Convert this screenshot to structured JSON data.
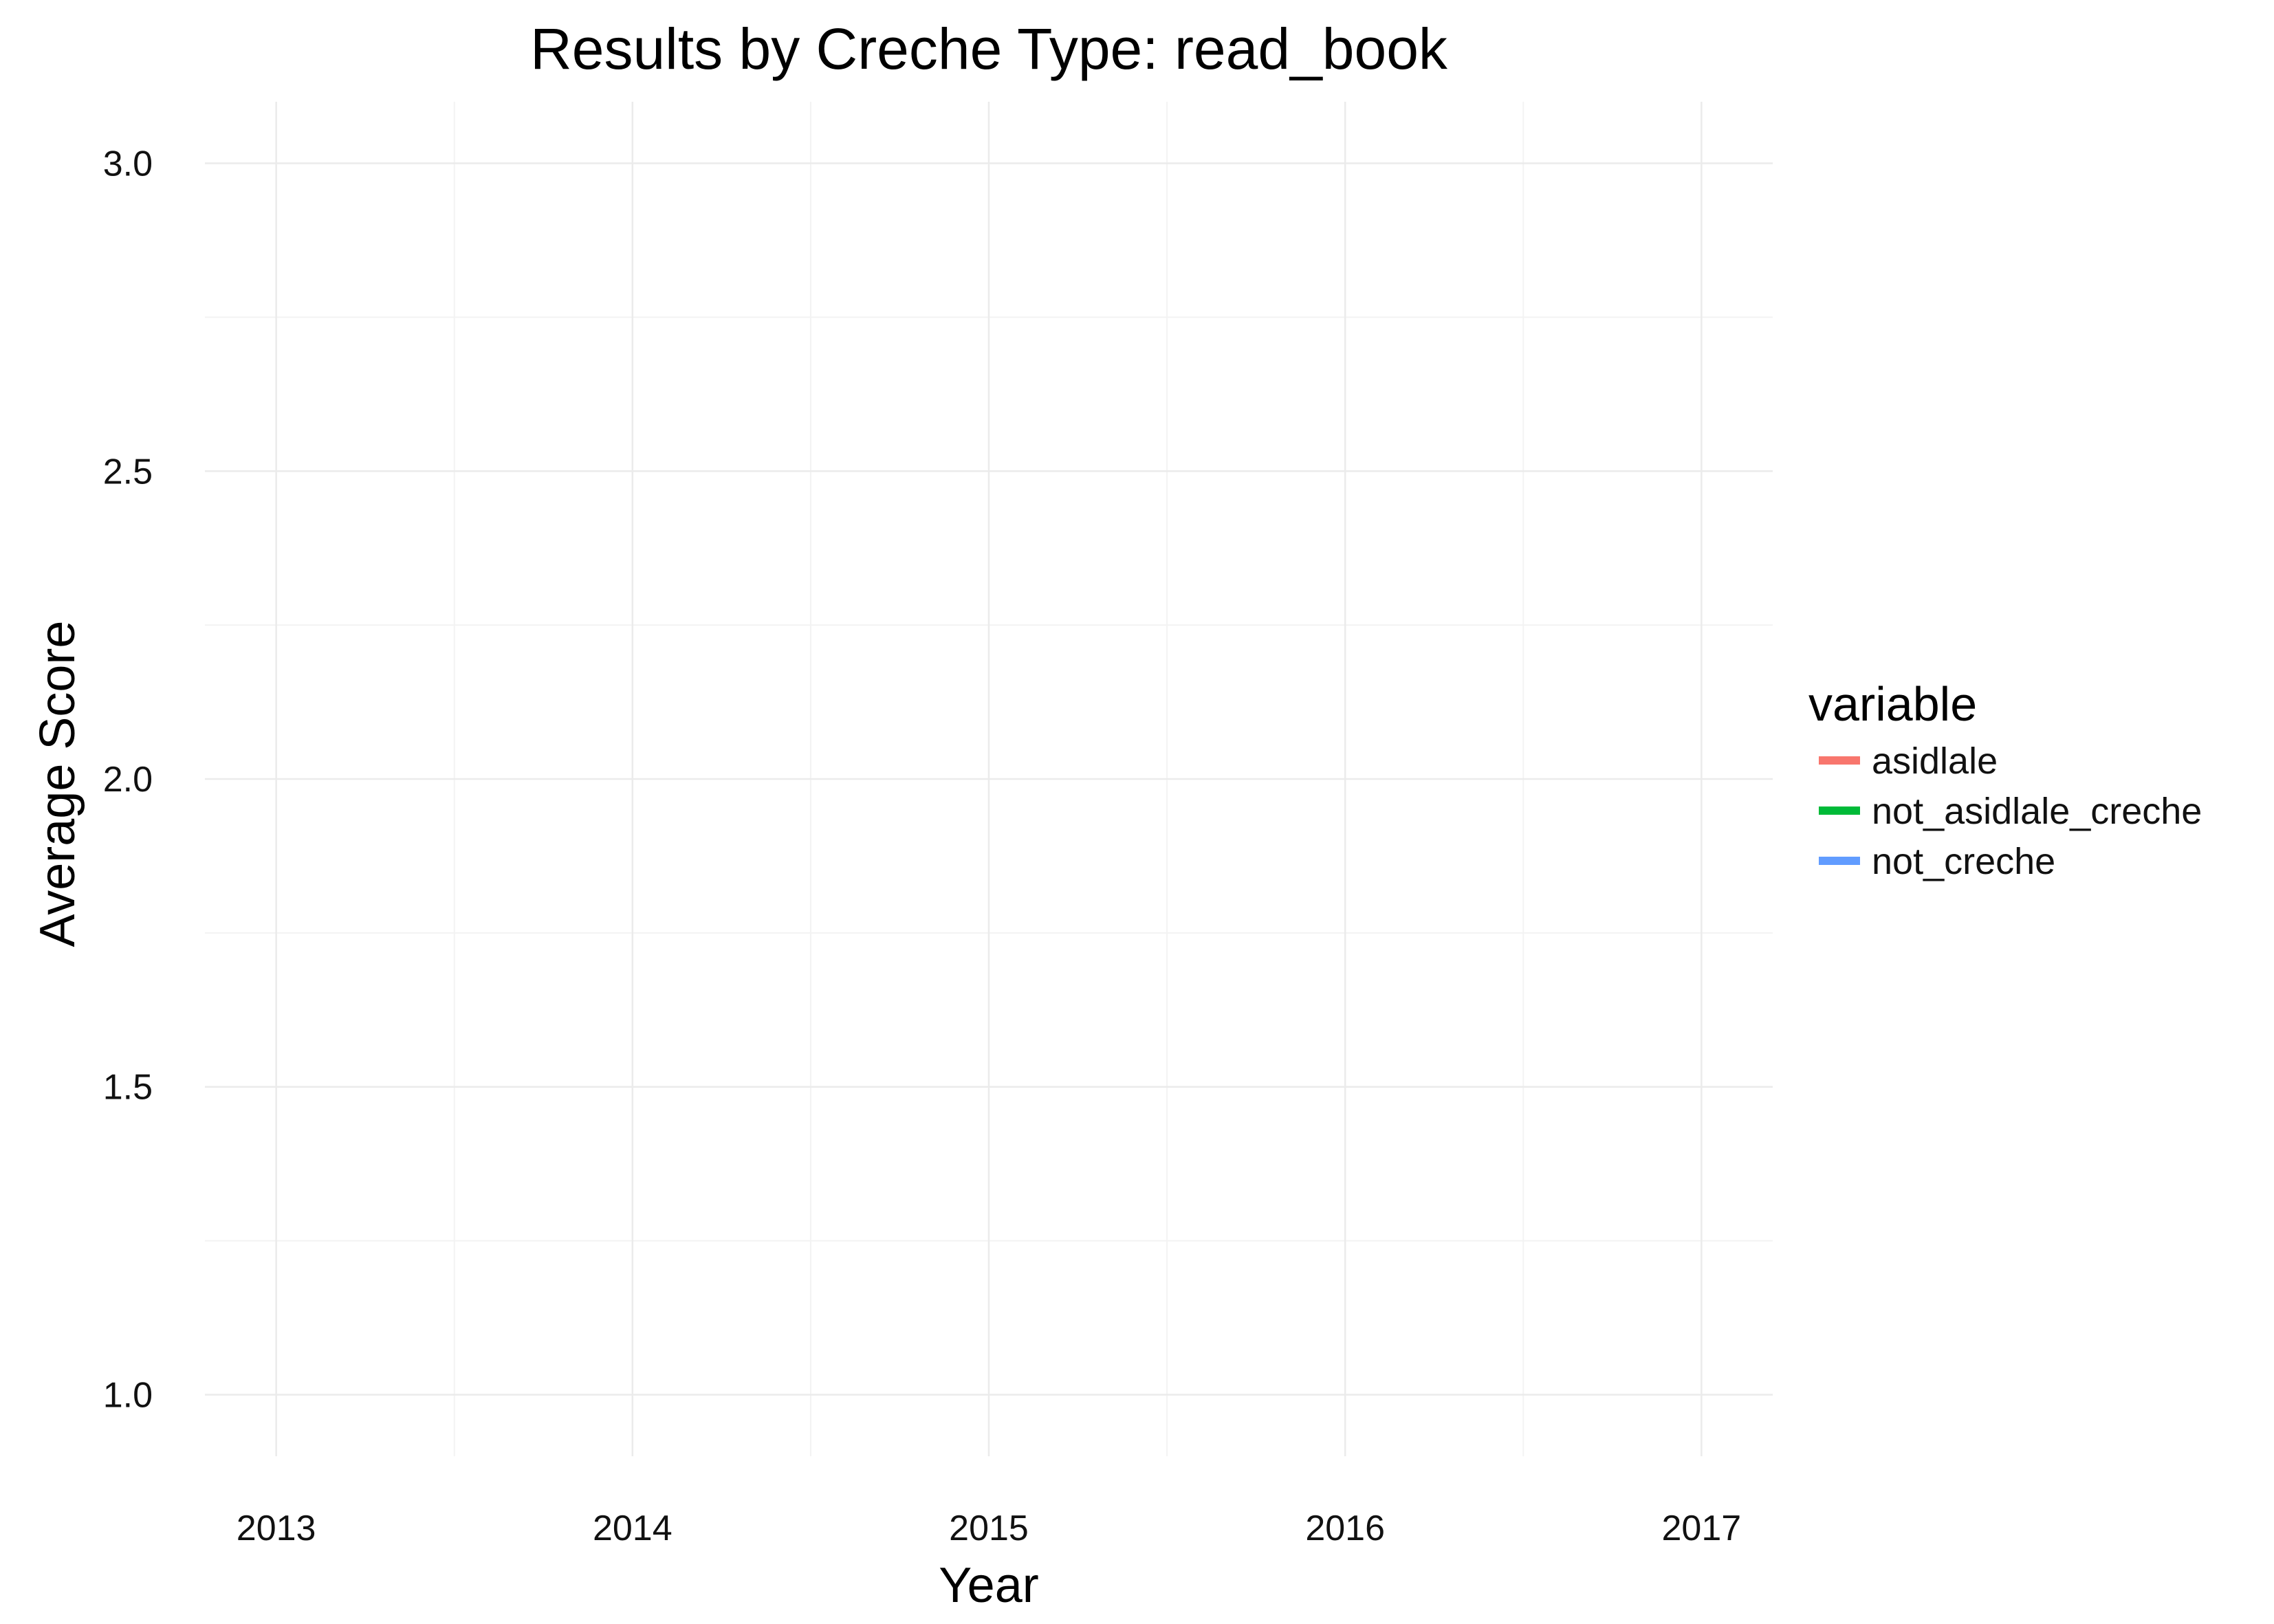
{
  "chart_data": {
    "type": "line",
    "title": "Results by Creche Type: read_book",
    "xlabel": "Year",
    "ylabel": "Average Score",
    "x_ticks": [
      2013,
      2014,
      2015,
      2016,
      2017
    ],
    "y_ticks": [
      "1.0",
      "1.5",
      "2.0",
      "2.5",
      "3.0"
    ],
    "xlim": [
      2012.8,
      2017.2
    ],
    "ylim": [
      0.9,
      3.1
    ],
    "grid": true,
    "legend_title": "variable",
    "legend_position": "right",
    "series": [
      {
        "name": "asidlale",
        "color": "#F8766D",
        "values": []
      },
      {
        "name": "not_asidlale_creche",
        "color": "#00BA38",
        "values": []
      },
      {
        "name": "not_creche",
        "color": "#619CFF",
        "values": []
      }
    ]
  }
}
